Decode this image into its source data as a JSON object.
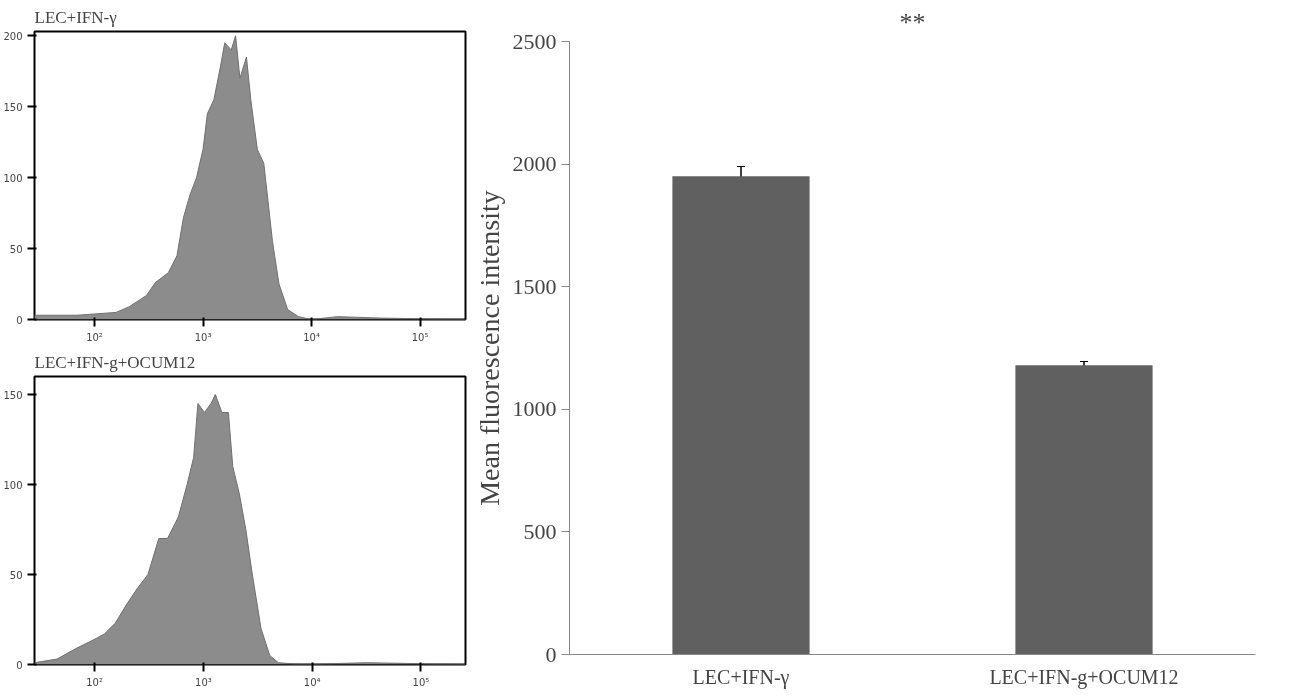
{
  "chart_data": [
    {
      "type": "area",
      "title": "LEC+IFN-γ",
      "log": "x",
      "grid": false,
      "xlim": [
        28,
        262000
      ],
      "ylim": [
        0,
        203
      ],
      "xticks": [
        {
          "value": 100,
          "label": "10²"
        },
        {
          "value": 1000,
          "label": "10³"
        },
        {
          "value": 10000,
          "label": "10⁴"
        },
        {
          "value": 100000,
          "label": "10⁵"
        }
      ],
      "yticks": [
        0,
        50,
        100,
        150,
        200
      ],
      "series": [
        {
          "color": "#8c8c8c",
          "x": [
            28,
            69,
            158,
            209,
            302,
            363,
            479,
            575,
            661,
            759,
            871,
            1000,
            1096,
            1259,
            1445,
            1585,
            1820,
            1995,
            2188,
            2512,
            2754,
            3162,
            3631,
            4365,
            5012,
            6026,
            7586,
            10000,
            17378,
            43652,
            262000
          ],
          "values": [
            3,
            3,
            5,
            9,
            17,
            26,
            33,
            45,
            72,
            88,
            100,
            120,
            145,
            155,
            178,
            195,
            190,
            200,
            170,
            185,
            155,
            120,
            110,
            55,
            25,
            7,
            2,
            0,
            2,
            1,
            0
          ]
        }
      ]
    },
    {
      "type": "area",
      "title": "LEC+IFN-g+OCUM12",
      "log": "x",
      "grid": false,
      "xlim": [
        28,
        257000
      ],
      "ylim": [
        0,
        160
      ],
      "xticks": [
        {
          "value": 100,
          "label": "10²"
        },
        {
          "value": 1000,
          "label": "10³"
        },
        {
          "value": 10000,
          "label": "10⁴"
        },
        {
          "value": 100000,
          "label": "10⁵"
        }
      ],
      "yticks": [
        0,
        50,
        100,
        150
      ],
      "series": [
        {
          "color": "#8c8c8c",
          "x": [
            28,
            45,
            68,
            100,
            123,
            155,
            195,
            245,
            309,
            389,
            468,
            589,
            708,
            813,
            891,
            1023,
            1175,
            1288,
            1479,
            1698,
            1862,
            2138,
            2455,
            2818,
            3388,
            4074,
            4898,
            7943,
            31623,
            257000
          ],
          "values": [
            1,
            3,
            9,
            14,
            17,
            23,
            33,
            42,
            50,
            70,
            70,
            82,
            100,
            115,
            145,
            140,
            145,
            150,
            140,
            140,
            110,
            95,
            75,
            50,
            20,
            5,
            1,
            0,
            1,
            0
          ]
        }
      ]
    },
    {
      "type": "bar",
      "ylabel": "Mean fluorescence intensity",
      "grid": false,
      "categories": [
        "LEC+IFN-γ",
        "LEC+IFN-g+OCUM12"
      ],
      "values": [
        1950,
        1180
      ],
      "errors": [
        40,
        15
      ],
      "color": "#606060",
      "ylim": [
        0,
        2500
      ],
      "yticks": [
        0,
        500,
        1000,
        1500,
        2000,
        2500
      ],
      "annotations": [
        "**"
      ]
    }
  ]
}
